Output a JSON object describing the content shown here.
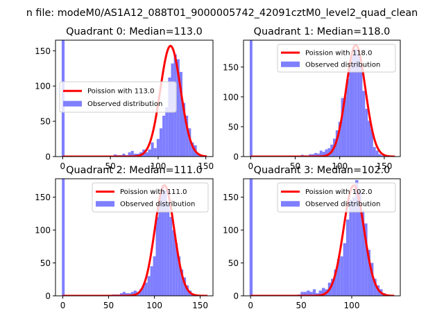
{
  "figure": {
    "suptitle": "n file: modeM0/AS1A12_088T01_9000005742_42091cztM0_level2_quad_clean"
  },
  "chart_data": [
    {
      "type": "bar",
      "title": "Quadrant 0: Median=113.0",
      "xlim": [
        -7.5,
        157.5
      ],
      "ylim": [
        0,
        165
      ],
      "xticks": [
        0,
        50,
        100,
        150
      ],
      "yticks": [
        0,
        50,
        100,
        150
      ],
      "legend": {
        "position": "center-left",
        "entries": [
          "Poission with 113.0",
          "Observed distribution"
        ]
      },
      "poisson_mean": 113.0,
      "curve_peak": 157,
      "bin_width": 3,
      "zero_bar": 165,
      "hist_x": [
        55,
        58,
        61,
        64,
        67,
        70,
        73,
        76,
        79,
        82,
        85,
        88,
        91,
        94,
        97,
        100,
        103,
        106,
        109,
        112,
        115,
        118,
        121,
        124,
        127,
        130,
        133,
        136,
        139,
        142,
        145
      ],
      "hist_y": [
        3,
        2,
        2,
        4,
        2,
        6,
        8,
        4,
        4,
        6,
        10,
        6,
        10,
        20,
        12,
        25,
        40,
        58,
        70,
        112,
        132,
        145,
        138,
        120,
        76,
        58,
        40,
        20,
        16,
        4,
        1
      ]
    },
    {
      "type": "bar",
      "title": "Quadrant 1: Median=118.0",
      "xlim": [
        -8,
        168
      ],
      "ylim": [
        0,
        195
      ],
      "xticks": [
        0,
        50,
        100,
        150
      ],
      "yticks": [
        0,
        50,
        100,
        150
      ],
      "legend": {
        "position": "upper-right",
        "entries": [
          "Poission with 118.0",
          "Observed distribution"
        ]
      },
      "poisson_mean": 118.0,
      "curve_peak": 187,
      "bin_width": 3,
      "zero_bar": 195,
      "hist_x": [
        58,
        61,
        64,
        67,
        70,
        73,
        76,
        79,
        82,
        85,
        88,
        91,
        94,
        97,
        100,
        103,
        106,
        109,
        112,
        115,
        118,
        121,
        124,
        127,
        130,
        133,
        136,
        139,
        142,
        145,
        148
      ],
      "hist_y": [
        3,
        2,
        2,
        4,
        4,
        6,
        5,
        10,
        8,
        12,
        14,
        20,
        30,
        44,
        58,
        98,
        100,
        130,
        150,
        170,
        180,
        170,
        150,
        110,
        80,
        60,
        46,
        16,
        10,
        4,
        2
      ]
    },
    {
      "type": "bar",
      "title": "Quadrant 2: Median=111.0",
      "xlim": [
        -8,
        164
      ],
      "ylim": [
        0,
        178
      ],
      "xticks": [
        0,
        50,
        100,
        150
      ],
      "yticks": [
        0,
        50,
        100,
        150
      ],
      "legend": {
        "position": "upper-right",
        "entries": [
          "Poission with 111.0",
          "Observed distribution"
        ]
      },
      "poisson_mean": 111.0,
      "curve_peak": 168,
      "bin_width": 3,
      "zero_bar": 178,
      "hist_x": [
        55,
        58,
        61,
        64,
        67,
        70,
        73,
        76,
        79,
        82,
        85,
        88,
        91,
        94,
        97,
        100,
        103,
        106,
        109,
        112,
        115,
        118,
        121,
        124,
        127,
        130,
        133,
        136,
        139,
        142
      ],
      "hist_y": [
        2,
        2,
        2,
        4,
        6,
        4,
        4,
        6,
        8,
        6,
        10,
        16,
        20,
        30,
        45,
        60,
        120,
        150,
        168,
        160,
        140,
        120,
        100,
        80,
        60,
        40,
        28,
        16,
        8,
        2
      ]
    },
    {
      "type": "bar",
      "title": "Quadrant 3: Median=102.0",
      "xlim": [
        -7,
        148
      ],
      "ylim": [
        0,
        178
      ],
      "xticks": [
        0,
        50,
        100
      ],
      "yticks": [
        0,
        50,
        100,
        150
      ],
      "legend": {
        "position": "upper-right",
        "entries": [
          "Poission with 102.0",
          "Observed distribution"
        ]
      },
      "poisson_mean": 102.0,
      "curve_peak": 168,
      "bin_width": 3,
      "zero_bar": 178,
      "hist_x": [
        48,
        51,
        54,
        57,
        60,
        63,
        66,
        69,
        72,
        75,
        78,
        81,
        84,
        87,
        90,
        93,
        96,
        99,
        102,
        105,
        108,
        111,
        114,
        117,
        120,
        123,
        126,
        129,
        132,
        135
      ],
      "hist_y": [
        2,
        6,
        6,
        8,
        6,
        10,
        4,
        8,
        12,
        10,
        20,
        26,
        40,
        56,
        60,
        80,
        116,
        146,
        150,
        176,
        160,
        130,
        110,
        70,
        50,
        26,
        16,
        10,
        4,
        2
      ]
    }
  ]
}
